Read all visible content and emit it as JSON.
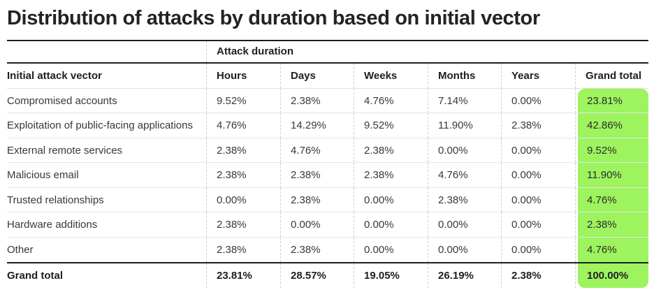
{
  "title": "Distribution of attacks by duration based on initial vector",
  "colors": {
    "highlight_green": "#9df45e",
    "dark_rule": "#1d1d20",
    "light_rule": "#e6e6e8"
  },
  "table": {
    "group_header": "Attack duration",
    "columns": [
      "Initial attack vector",
      "Hours",
      "Days",
      "Weeks",
      "Months",
      "Years",
      "Grand total"
    ],
    "rows": [
      {
        "label": "Compromised accounts",
        "values": [
          "9.52%",
          "2.38%",
          "4.76%",
          "7.14%",
          "0.00%"
        ],
        "total": "23.81%"
      },
      {
        "label": "Exploitation of public-facing applications",
        "values": [
          "4.76%",
          "14.29%",
          "9.52%",
          "11.90%",
          "2.38%"
        ],
        "total": "42.86%"
      },
      {
        "label": "External remote services",
        "values": [
          "2.38%",
          "4.76%",
          "2.38%",
          "0.00%",
          "0.00%"
        ],
        "total": "9.52%"
      },
      {
        "label": "Malicious email",
        "values": [
          "2.38%",
          "2.38%",
          "2.38%",
          "4.76%",
          "0.00%"
        ],
        "total": "11.90%"
      },
      {
        "label": "Trusted relationships",
        "values": [
          "0.00%",
          "2.38%",
          "0.00%",
          "2.38%",
          "0.00%"
        ],
        "total": "4.76%"
      },
      {
        "label": "Hardware additions",
        "values": [
          "2.38%",
          "0.00%",
          "0.00%",
          "0.00%",
          "0.00%"
        ],
        "total": "2.38%"
      },
      {
        "label": "Other",
        "values": [
          "2.38%",
          "2.38%",
          "0.00%",
          "0.00%",
          "0.00%"
        ],
        "total": "4.76%"
      }
    ],
    "grand_total_row": {
      "label": "Grand total",
      "values": [
        "23.81%",
        "28.57%",
        "19.05%",
        "26.19%",
        "2.38%"
      ],
      "total": "100.00%"
    }
  },
  "chart_data": {
    "type": "table",
    "title": "Distribution of attacks by duration based on initial vector",
    "column_group_label": "Attack duration",
    "columns": [
      "Hours",
      "Days",
      "Weeks",
      "Months",
      "Years",
      "Grand total"
    ],
    "unit": "percent",
    "rows": [
      {
        "category": "Compromised accounts",
        "values": [
          9.52,
          2.38,
          4.76,
          7.14,
          0.0,
          23.81
        ]
      },
      {
        "category": "Exploitation of public-facing applications",
        "values": [
          4.76,
          14.29,
          9.52,
          11.9,
          2.38,
          42.86
        ]
      },
      {
        "category": "External remote services",
        "values": [
          2.38,
          4.76,
          2.38,
          0.0,
          0.0,
          9.52
        ]
      },
      {
        "category": "Malicious email",
        "values": [
          2.38,
          2.38,
          2.38,
          4.76,
          0.0,
          11.9
        ]
      },
      {
        "category": "Trusted relationships",
        "values": [
          0.0,
          2.38,
          0.0,
          2.38,
          0.0,
          4.76
        ]
      },
      {
        "category": "Hardware additions",
        "values": [
          2.38,
          0.0,
          0.0,
          0.0,
          0.0,
          2.38
        ]
      },
      {
        "category": "Other",
        "values": [
          2.38,
          2.38,
          0.0,
          0.0,
          0.0,
          4.76
        ]
      },
      {
        "category": "Grand total",
        "values": [
          23.81,
          28.57,
          19.05,
          26.19,
          2.38,
          100.0
        ]
      }
    ],
    "layout_hints": {
      "grand_total_column_highlighted": true,
      "highlight_color": "#9df45e",
      "column_separators": "dashed",
      "row_separators": "thin-solid"
    }
  }
}
